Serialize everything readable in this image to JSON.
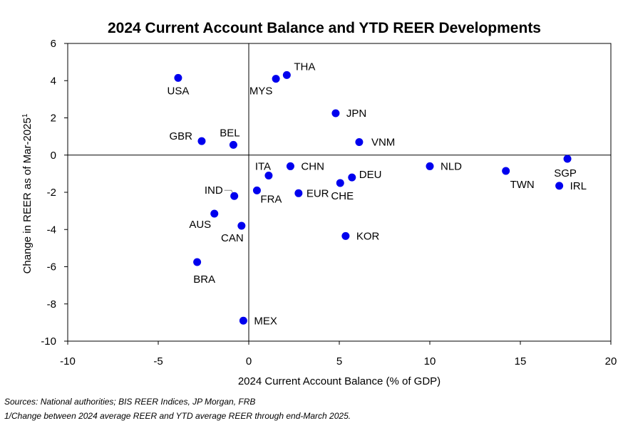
{
  "chart_data": {
    "type": "scatter",
    "title": "2024 Current Account Balance and YTD REER Developments",
    "xlabel": "2024 Current Account Balance (% of GDP)",
    "ylabel": "Change in REER as of Mar-2025",
    "ylabel_superscript": "1",
    "xlim": [
      -10,
      20
    ],
    "ylim": [
      -10,
      6
    ],
    "x_ticks": [
      "-10",
      "-5",
      "0",
      "5",
      "10",
      "15",
      "20"
    ],
    "y_ticks": [
      "6",
      "4",
      "2",
      "0",
      "-2",
      "-4",
      "-6",
      "-8",
      "-10"
    ],
    "grid": false,
    "marker_color": "#0000ee",
    "points": [
      {
        "label": "USA",
        "x": -3.9,
        "y": 4.15
      },
      {
        "label": "MYS",
        "x": 1.5,
        "y": 4.1
      },
      {
        "label": "THA",
        "x": 2.1,
        "y": 4.3
      },
      {
        "label": "JPN",
        "x": 4.8,
        "y": 2.25
      },
      {
        "label": "GBR",
        "x": -2.6,
        "y": 0.75
      },
      {
        "label": "BEL",
        "x": -0.85,
        "y": 0.55
      },
      {
        "label": "VNM",
        "x": 6.1,
        "y": 0.7
      },
      {
        "label": "ITA",
        "x": 1.1,
        "y": -1.1
      },
      {
        "label": "CHN",
        "x": 2.3,
        "y": -0.6
      },
      {
        "label": "DEU",
        "x": 5.7,
        "y": -1.2
      },
      {
        "label": "CHE",
        "x": 5.05,
        "y": -1.5
      },
      {
        "label": "EUR",
        "x": 2.75,
        "y": -2.05
      },
      {
        "label": "FRA",
        "x": 0.45,
        "y": -1.9
      },
      {
        "label": "IND",
        "x": -0.8,
        "y": -2.2
      },
      {
        "label": "NLD",
        "x": 10.0,
        "y": -0.6
      },
      {
        "label": "TWN",
        "x": 14.2,
        "y": -0.85
      },
      {
        "label": "SGP",
        "x": 17.6,
        "y": -0.2
      },
      {
        "label": "IRL",
        "x": 17.15,
        "y": -1.65
      },
      {
        "label": "AUS",
        "x": -1.9,
        "y": -3.15
      },
      {
        "label": "CAN",
        "x": -0.4,
        "y": -3.8
      },
      {
        "label": "KOR",
        "x": 5.35,
        "y": -4.35
      },
      {
        "label": "BRA",
        "x": -2.85,
        "y": -5.75
      },
      {
        "label": "MEX",
        "x": -0.3,
        "y": -8.9
      }
    ]
  },
  "footnotes": {
    "sources": "Sources: National authorities; BIS REER Indices, JP Morgan, FRB",
    "note": "1/Change between 2024 average REER and YTD average REER through end-March 2025."
  }
}
